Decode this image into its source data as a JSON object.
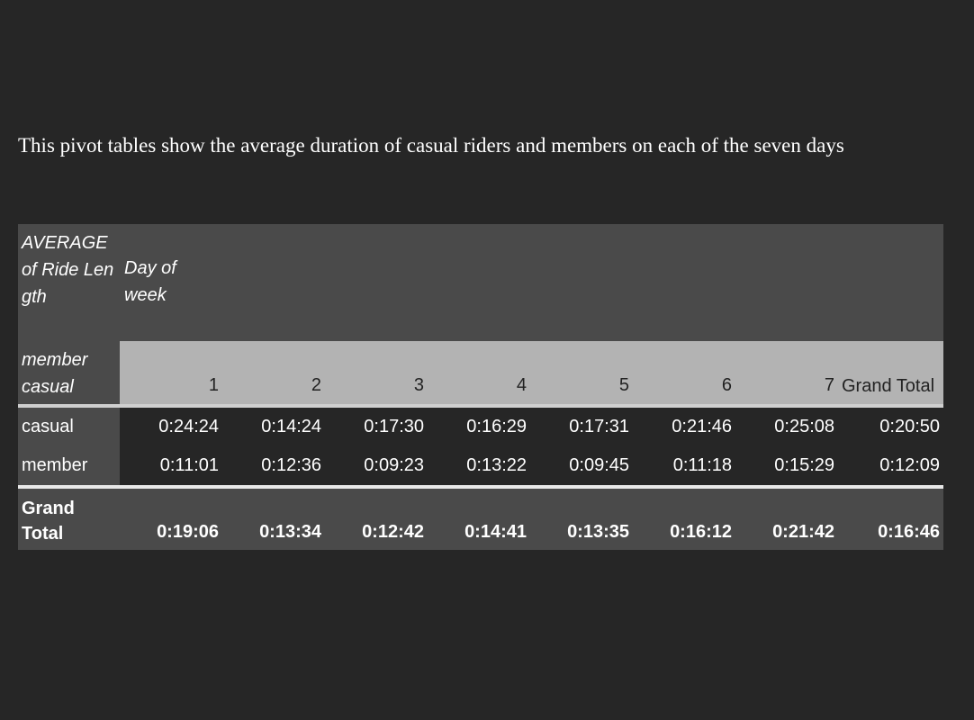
{
  "intro_text": "This pivot tables show the average duration of casual riders and members on each of the seven days",
  "pivot": {
    "measure_label": "AVERAGE of Ride Length",
    "column_field": "Day of week",
    "row_field": "member casual",
    "columns": [
      "1",
      "2",
      "3",
      "4",
      "5",
      "6",
      "7"
    ],
    "grand_total_col_label": "Grand Total",
    "rows": [
      {
        "label": "casual",
        "values": [
          "0:24:24",
          "0:14:24",
          "0:17:30",
          "0:16:29",
          "0:17:31",
          "0:21:46",
          "0:25:08"
        ],
        "grand_total": "0:20:50"
      },
      {
        "label": "member",
        "values": [
          "0:11:01",
          "0:12:36",
          "0:09:23",
          "0:13:22",
          "0:09:45",
          "0:11:18",
          "0:15:29"
        ],
        "grand_total": "0:12:09"
      }
    ],
    "grand_total_row": {
      "label": "Grand Total",
      "values": [
        "0:19:06",
        "0:13:34",
        "0:12:42",
        "0:14:41",
        "0:13:35",
        "0:16:12",
        "0:21:42"
      ],
      "grand_total": "0:16:46"
    }
  },
  "colors": {
    "page_background": "#262626",
    "header_dark": "#4a4a4a",
    "header_light": "#b3b3b3"
  }
}
